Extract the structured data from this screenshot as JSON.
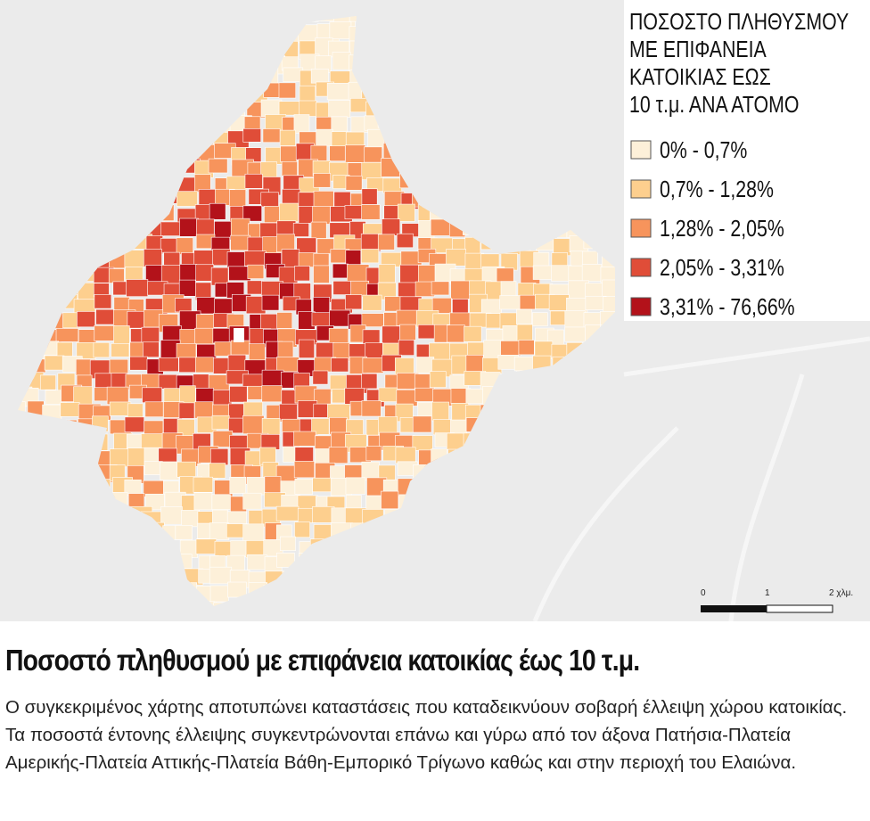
{
  "legend": {
    "title_lines": [
      "ΠΟΣΟΣΤΟ ΠΛΗΘΥΣΜΟΥ",
      "ΜΕ ΕΠΙΦΑΝΕΙΑ",
      "ΚΑΤΟΙΚΙΑΣ ΕΩΣ",
      "10 τ.μ. ΑΝΑ ΑΤΟΜΟ"
    ],
    "items": [
      {
        "label": "0% - 0,7%",
        "color": "#fdf0d9"
      },
      {
        "label": "0,7% - 1,28%",
        "color": "#fdcf8e"
      },
      {
        "label": "1,28% - 2,05%",
        "color": "#f7945c"
      },
      {
        "label": "2,05% - 3,31%",
        "color": "#e04d38"
      },
      {
        "label": "3,31% - 76,66%",
        "color": "#b3121a"
      }
    ]
  },
  "scale_bar": {
    "labels": [
      "0",
      "1",
      "2 χλμ."
    ]
  },
  "article": {
    "title": "Ποσοστό πληθυσμού με επιφάνεια κατοικίας έως 10 τ.μ.",
    "description": "Ο συγκεκριμένος χάρτης αποτυπώνει καταστάσεις που καταδεικνύουν σοβαρή έλλειψη χώρου κατοικίας. Τα ποσοστά έντονης έλλειψης συγκεντρώνονται επάνω και γύρω από τον άξονα Πατήσια-Πλατεία Αμερικής-Πλατεία Αττικής-Πλατεία Βάθη-Εμπορικό Τρίγωνο καθώς και στην περιοχή του Ελαιώνα."
  }
}
